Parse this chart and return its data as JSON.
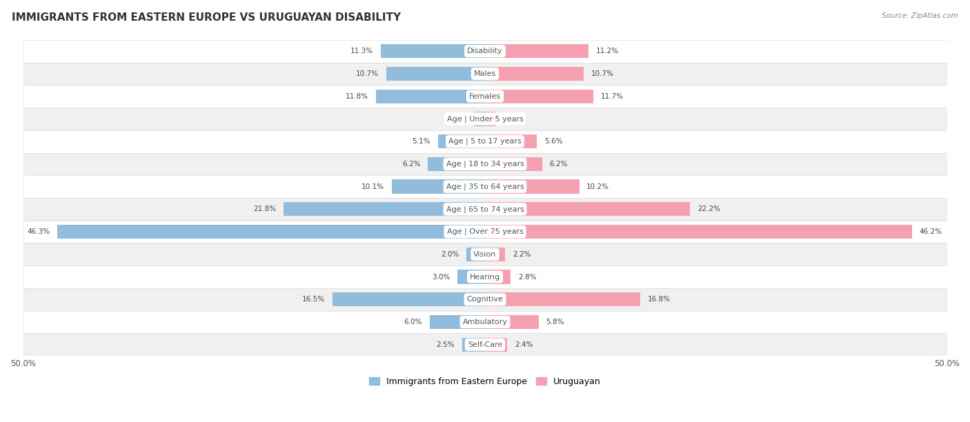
{
  "title": "IMMIGRANTS FROM EASTERN EUROPE VS URUGUAYAN DISABILITY",
  "source": "Source: ZipAtlas.com",
  "categories": [
    "Disability",
    "Males",
    "Females",
    "Age | Under 5 years",
    "Age | 5 to 17 years",
    "Age | 18 to 34 years",
    "Age | 35 to 64 years",
    "Age | 65 to 74 years",
    "Age | Over 75 years",
    "Vision",
    "Hearing",
    "Cognitive",
    "Ambulatory",
    "Self-Care"
  ],
  "left_values": [
    11.3,
    10.7,
    11.8,
    1.2,
    5.1,
    6.2,
    10.1,
    21.8,
    46.3,
    2.0,
    3.0,
    16.5,
    6.0,
    2.5
  ],
  "right_values": [
    11.2,
    10.7,
    11.7,
    1.2,
    5.6,
    6.2,
    10.2,
    22.2,
    46.2,
    2.2,
    2.8,
    16.8,
    5.8,
    2.4
  ],
  "left_color": "#92BCDC",
  "right_color": "#F4A0B0",
  "axis_max": 50.0,
  "legend_left": "Immigrants from Eastern Europe",
  "legend_right": "Uruguayan",
  "bar_height": 0.62,
  "row_colors": [
    "#FFFFFF",
    "#F0F0F0"
  ],
  "label_box_color": "#FFFFFF",
  "label_text_color": "#555555"
}
